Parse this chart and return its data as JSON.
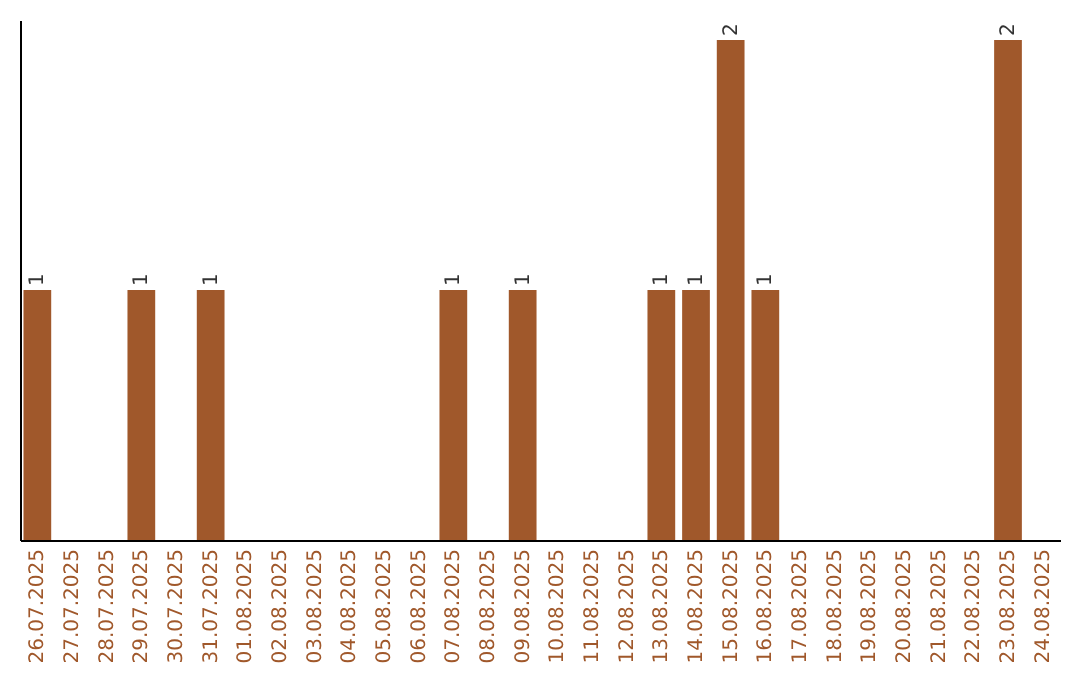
{
  "chart_data": {
    "type": "bar",
    "categories": [
      "26.07.2025",
      "27.07.2025",
      "28.07.2025",
      "29.07.2025",
      "30.07.2025",
      "31.07.2025",
      "01.08.2025",
      "02.08.2025",
      "03.08.2025",
      "04.08.2025",
      "05.08.2025",
      "06.08.2025",
      "07.08.2025",
      "08.08.2025",
      "09.08.2025",
      "10.08.2025",
      "11.08.2025",
      "12.08.2025",
      "13.08.2025",
      "14.08.2025",
      "15.08.2025",
      "16.08.2025",
      "17.08.2025",
      "18.08.2025",
      "19.08.2025",
      "20.08.2025",
      "21.08.2025",
      "22.08.2025",
      "23.08.2025",
      "24.08.2025"
    ],
    "values": [
      1,
      0,
      0,
      1,
      0,
      1,
      0,
      0,
      0,
      0,
      0,
      0,
      1,
      0,
      1,
      0,
      0,
      0,
      1,
      1,
      2,
      1,
      0,
      0,
      0,
      0,
      0,
      0,
      2,
      0
    ],
    "color": "#a0582b",
    "ylim": [
      0,
      2.08
    ],
    "value_labels": [
      "1",
      null,
      null,
      "1",
      null,
      "1",
      null,
      null,
      null,
      null,
      null,
      null,
      "1",
      null,
      "1",
      null,
      null,
      null,
      "1",
      "1",
      "2",
      "1",
      null,
      null,
      null,
      null,
      null,
      null,
      "2",
      null
    ],
    "tick_labels": "x",
    "grid": false
  }
}
